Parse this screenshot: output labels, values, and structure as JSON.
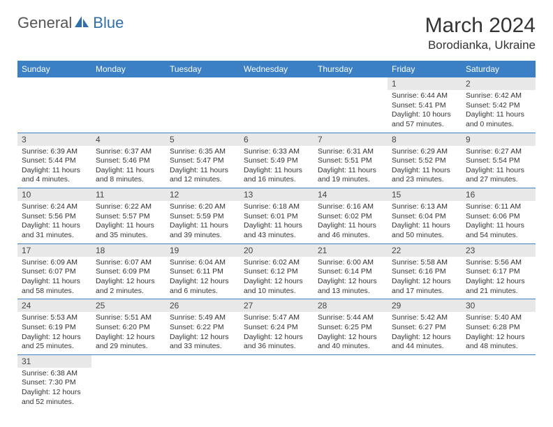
{
  "brand": {
    "part1": "General",
    "part2": "Blue"
  },
  "title": "March 2024",
  "location": "Borodianka, Ukraine",
  "colors": {
    "header_bg": "#3b7fc4",
    "header_text": "#ffffff",
    "daynum_bg": "#e8e8e8",
    "border": "#3b7fc4",
    "text": "#333333",
    "brand_gray": "#555555",
    "brand_blue": "#2f6fab"
  },
  "day_headers": [
    "Sunday",
    "Monday",
    "Tuesday",
    "Wednesday",
    "Thursday",
    "Friday",
    "Saturday"
  ],
  "weeks": [
    [
      null,
      null,
      null,
      null,
      null,
      {
        "n": "1",
        "sr": "Sunrise: 6:44 AM",
        "ss": "Sunset: 5:41 PM",
        "d1": "Daylight: 10 hours",
        "d2": "and 57 minutes."
      },
      {
        "n": "2",
        "sr": "Sunrise: 6:42 AM",
        "ss": "Sunset: 5:42 PM",
        "d1": "Daylight: 11 hours",
        "d2": "and 0 minutes."
      }
    ],
    [
      {
        "n": "3",
        "sr": "Sunrise: 6:39 AM",
        "ss": "Sunset: 5:44 PM",
        "d1": "Daylight: 11 hours",
        "d2": "and 4 minutes."
      },
      {
        "n": "4",
        "sr": "Sunrise: 6:37 AM",
        "ss": "Sunset: 5:46 PM",
        "d1": "Daylight: 11 hours",
        "d2": "and 8 minutes."
      },
      {
        "n": "5",
        "sr": "Sunrise: 6:35 AM",
        "ss": "Sunset: 5:47 PM",
        "d1": "Daylight: 11 hours",
        "d2": "and 12 minutes."
      },
      {
        "n": "6",
        "sr": "Sunrise: 6:33 AM",
        "ss": "Sunset: 5:49 PM",
        "d1": "Daylight: 11 hours",
        "d2": "and 16 minutes."
      },
      {
        "n": "7",
        "sr": "Sunrise: 6:31 AM",
        "ss": "Sunset: 5:51 PM",
        "d1": "Daylight: 11 hours",
        "d2": "and 19 minutes."
      },
      {
        "n": "8",
        "sr": "Sunrise: 6:29 AM",
        "ss": "Sunset: 5:52 PM",
        "d1": "Daylight: 11 hours",
        "d2": "and 23 minutes."
      },
      {
        "n": "9",
        "sr": "Sunrise: 6:27 AM",
        "ss": "Sunset: 5:54 PM",
        "d1": "Daylight: 11 hours",
        "d2": "and 27 minutes."
      }
    ],
    [
      {
        "n": "10",
        "sr": "Sunrise: 6:24 AM",
        "ss": "Sunset: 5:56 PM",
        "d1": "Daylight: 11 hours",
        "d2": "and 31 minutes."
      },
      {
        "n": "11",
        "sr": "Sunrise: 6:22 AM",
        "ss": "Sunset: 5:57 PM",
        "d1": "Daylight: 11 hours",
        "d2": "and 35 minutes."
      },
      {
        "n": "12",
        "sr": "Sunrise: 6:20 AM",
        "ss": "Sunset: 5:59 PM",
        "d1": "Daylight: 11 hours",
        "d2": "and 39 minutes."
      },
      {
        "n": "13",
        "sr": "Sunrise: 6:18 AM",
        "ss": "Sunset: 6:01 PM",
        "d1": "Daylight: 11 hours",
        "d2": "and 43 minutes."
      },
      {
        "n": "14",
        "sr": "Sunrise: 6:16 AM",
        "ss": "Sunset: 6:02 PM",
        "d1": "Daylight: 11 hours",
        "d2": "and 46 minutes."
      },
      {
        "n": "15",
        "sr": "Sunrise: 6:13 AM",
        "ss": "Sunset: 6:04 PM",
        "d1": "Daylight: 11 hours",
        "d2": "and 50 minutes."
      },
      {
        "n": "16",
        "sr": "Sunrise: 6:11 AM",
        "ss": "Sunset: 6:06 PM",
        "d1": "Daylight: 11 hours",
        "d2": "and 54 minutes."
      }
    ],
    [
      {
        "n": "17",
        "sr": "Sunrise: 6:09 AM",
        "ss": "Sunset: 6:07 PM",
        "d1": "Daylight: 11 hours",
        "d2": "and 58 minutes."
      },
      {
        "n": "18",
        "sr": "Sunrise: 6:07 AM",
        "ss": "Sunset: 6:09 PM",
        "d1": "Daylight: 12 hours",
        "d2": "and 2 minutes."
      },
      {
        "n": "19",
        "sr": "Sunrise: 6:04 AM",
        "ss": "Sunset: 6:11 PM",
        "d1": "Daylight: 12 hours",
        "d2": "and 6 minutes."
      },
      {
        "n": "20",
        "sr": "Sunrise: 6:02 AM",
        "ss": "Sunset: 6:12 PM",
        "d1": "Daylight: 12 hours",
        "d2": "and 10 minutes."
      },
      {
        "n": "21",
        "sr": "Sunrise: 6:00 AM",
        "ss": "Sunset: 6:14 PM",
        "d1": "Daylight: 12 hours",
        "d2": "and 13 minutes."
      },
      {
        "n": "22",
        "sr": "Sunrise: 5:58 AM",
        "ss": "Sunset: 6:16 PM",
        "d1": "Daylight: 12 hours",
        "d2": "and 17 minutes."
      },
      {
        "n": "23",
        "sr": "Sunrise: 5:56 AM",
        "ss": "Sunset: 6:17 PM",
        "d1": "Daylight: 12 hours",
        "d2": "and 21 minutes."
      }
    ],
    [
      {
        "n": "24",
        "sr": "Sunrise: 5:53 AM",
        "ss": "Sunset: 6:19 PM",
        "d1": "Daylight: 12 hours",
        "d2": "and 25 minutes."
      },
      {
        "n": "25",
        "sr": "Sunrise: 5:51 AM",
        "ss": "Sunset: 6:20 PM",
        "d1": "Daylight: 12 hours",
        "d2": "and 29 minutes."
      },
      {
        "n": "26",
        "sr": "Sunrise: 5:49 AM",
        "ss": "Sunset: 6:22 PM",
        "d1": "Daylight: 12 hours",
        "d2": "and 33 minutes."
      },
      {
        "n": "27",
        "sr": "Sunrise: 5:47 AM",
        "ss": "Sunset: 6:24 PM",
        "d1": "Daylight: 12 hours",
        "d2": "and 36 minutes."
      },
      {
        "n": "28",
        "sr": "Sunrise: 5:44 AM",
        "ss": "Sunset: 6:25 PM",
        "d1": "Daylight: 12 hours",
        "d2": "and 40 minutes."
      },
      {
        "n": "29",
        "sr": "Sunrise: 5:42 AM",
        "ss": "Sunset: 6:27 PM",
        "d1": "Daylight: 12 hours",
        "d2": "and 44 minutes."
      },
      {
        "n": "30",
        "sr": "Sunrise: 5:40 AM",
        "ss": "Sunset: 6:28 PM",
        "d1": "Daylight: 12 hours",
        "d2": "and 48 minutes."
      }
    ],
    [
      {
        "n": "31",
        "sr": "Sunrise: 6:38 AM",
        "ss": "Sunset: 7:30 PM",
        "d1": "Daylight: 12 hours",
        "d2": "and 52 minutes."
      },
      null,
      null,
      null,
      null,
      null,
      null
    ]
  ]
}
